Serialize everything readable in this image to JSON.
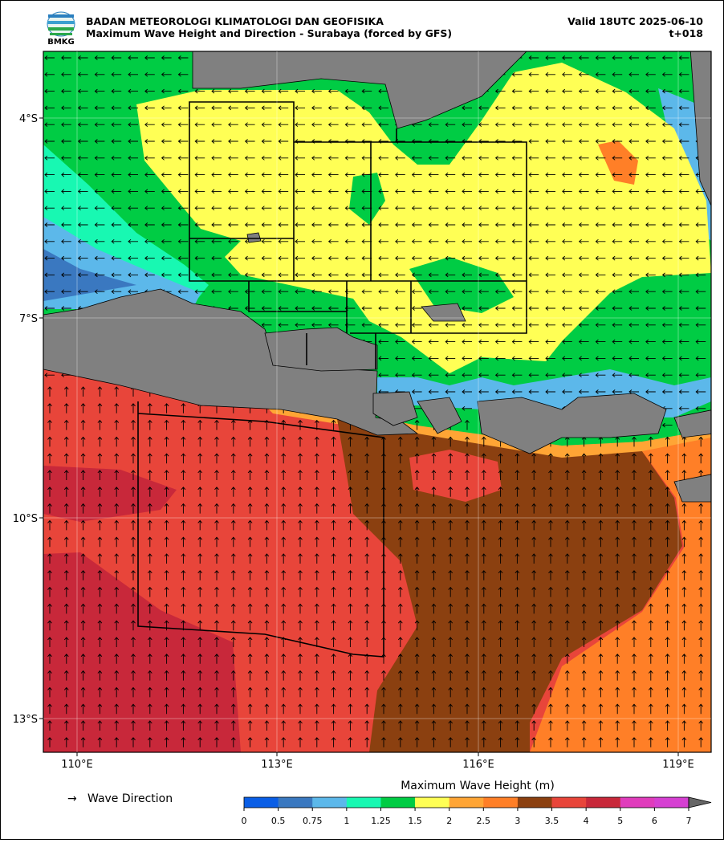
{
  "header": {
    "agency": "BADAN METEOROLOGI KLIMATOLOGI DAN GEOFISIKA",
    "title": "Maximum Wave Height and Direction - Surabaya (forced by GFS)",
    "valid": "Valid 18UTC 2025-06-10",
    "lead": "t+018",
    "logo_text": "BMKG"
  },
  "map": {
    "lon_labels": [
      "110°E",
      "113°E",
      "116°E",
      "119°E"
    ],
    "lat_labels": [
      "4°S",
      "7°S",
      "10°S",
      "13°S"
    ]
  },
  "legend": {
    "arrow_label": "Wave Direction"
  },
  "colorbar": {
    "label": "Maximum Wave Height (m)",
    "ticks": [
      0,
      0.5,
      0.75,
      1,
      1.25,
      1.5,
      2,
      2.5,
      3,
      3.5,
      4,
      5,
      6,
      7
    ],
    "colors": [
      "#0a5ee6",
      "#3a78c0",
      "#5cb8ea",
      "#18f8b2",
      "#00cc44",
      "#ffff55",
      "#ffa535",
      "#ff7f27",
      "#8b4010",
      "#e8453a",
      "#c8283a",
      "#e03cbc",
      "#d640d2"
    ]
  }
}
